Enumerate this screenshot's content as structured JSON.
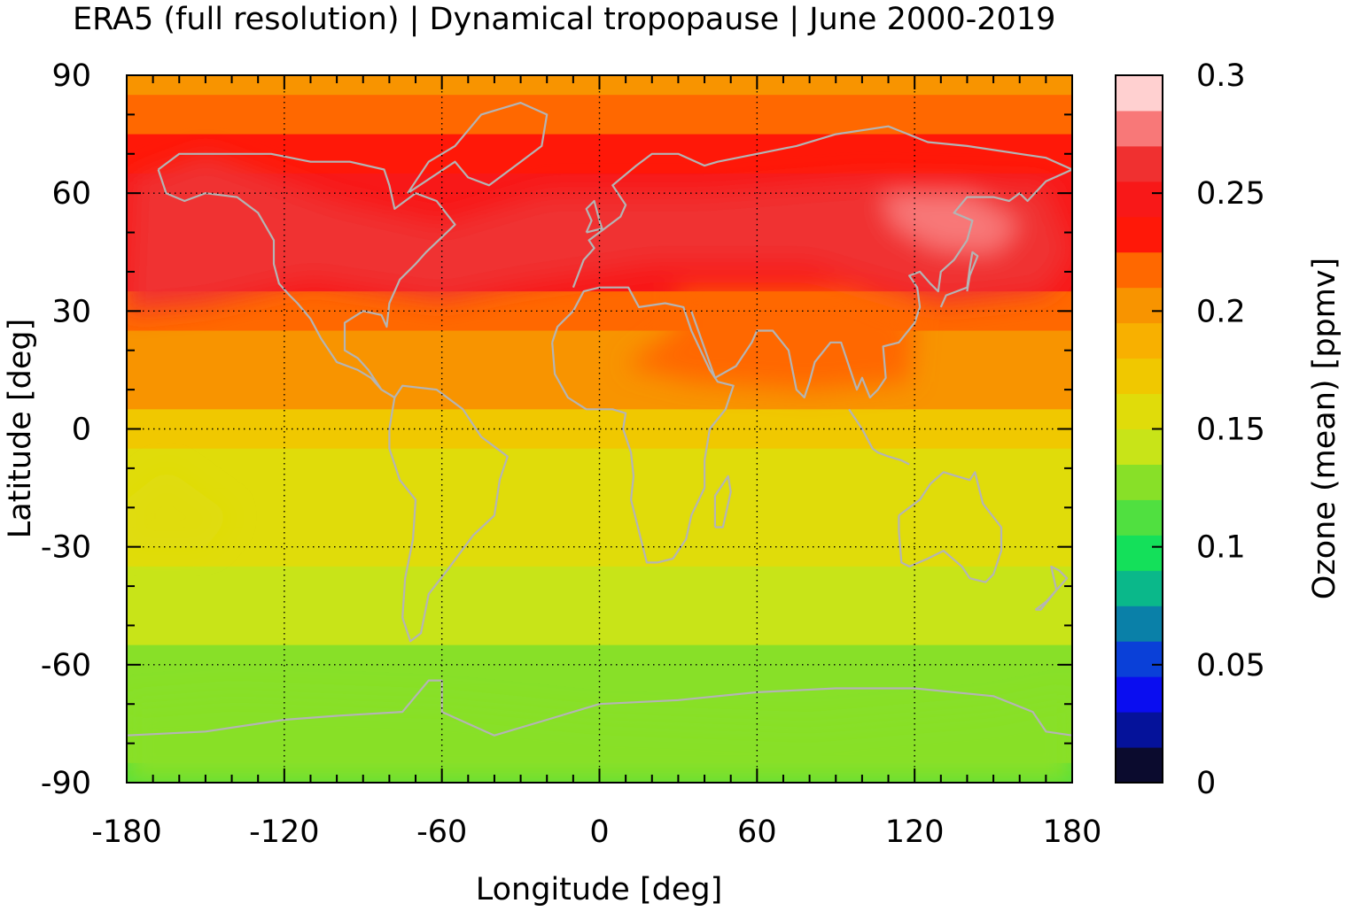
{
  "chart_data": {
    "type": "heatmap",
    "title": "ERA5 (full resolution) | Dynamical tropopause | June 2000-2019",
    "xlabel": "Longitude [deg]",
    "ylabel": "Latitude [deg]",
    "xlim": [
      -180,
      180
    ],
    "ylim": [
      -90,
      90
    ],
    "x_ticks": [
      -180,
      -120,
      -60,
      0,
      60,
      120,
      180
    ],
    "y_ticks": [
      90,
      60,
      30,
      0,
      -30,
      -60,
      -90
    ],
    "x_tick_labels": [
      "-180",
      "-120",
      "-60",
      "0",
      "60",
      "120",
      "180"
    ],
    "y_tick_labels": [
      "90",
      "60",
      "30",
      "0",
      "-30",
      "-60",
      "-90"
    ],
    "grid": true,
    "colorbar": {
      "label": "Ozone (mean) [ppmv]",
      "range": [
        0,
        0.3
      ],
      "tick_values": [
        0,
        0.05,
        0.1,
        0.15,
        0.2,
        0.25,
        0.3
      ],
      "tick_labels": [
        "0",
        "0.05",
        "0.1",
        "0.15",
        "0.2",
        "0.25",
        "0.3"
      ],
      "levels": [
        0,
        0.015,
        0.03,
        0.045,
        0.06,
        0.075,
        0.09,
        0.105,
        0.12,
        0.135,
        0.15,
        0.165,
        0.18,
        0.195,
        0.21,
        0.225,
        0.24,
        0.255,
        0.27,
        0.285,
        0.3
      ],
      "colors": [
        "#0b0b2e",
        "#05129a",
        "#0a0df0",
        "#0a40d8",
        "#0a80a8",
        "#0ab88a",
        "#14e05a",
        "#50e040",
        "#88e028",
        "#c8e418",
        "#e0dc0a",
        "#f0c800",
        "#f8b000",
        "#f89400",
        "#ff6800",
        "#ff1808",
        "#f81818",
        "#f03030",
        "#f87878",
        "#ffd0d0"
      ]
    },
    "zonal_mean_ozone_ppmv": {
      "latitude": [
        90,
        80,
        70,
        60,
        50,
        40,
        30,
        20,
        10,
        0,
        -10,
        -20,
        -30,
        -40,
        -50,
        -60,
        -70,
        -80,
        -90
      ],
      "values": [
        0.2,
        0.21,
        0.235,
        0.245,
        0.245,
        0.245,
        0.215,
        0.205,
        0.195,
        0.165,
        0.155,
        0.15,
        0.15,
        0.14,
        0.135,
        0.125,
        0.125,
        0.12,
        0.115
      ]
    },
    "coastline_color": "#b4b4b4"
  }
}
